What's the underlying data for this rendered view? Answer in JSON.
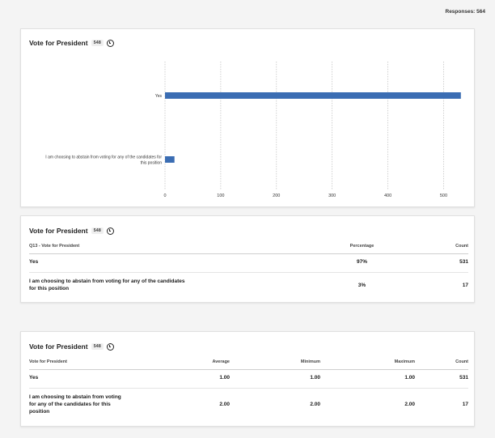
{
  "header": {
    "responses": "Responses: 564"
  },
  "chart_card": {
    "title": "Vote for President",
    "badge": "548"
  },
  "chart_data": {
    "type": "bar",
    "orientation": "horizontal",
    "categories": [
      "Yes",
      "I am choosing to abstain from voting for any of the candidates for this position"
    ],
    "category_lines": [
      [
        "Yes"
      ],
      [
        "I am choosing to abstain from voting for any of the candidates for",
        "this position"
      ]
    ],
    "values": [
      531,
      17
    ],
    "xlim": [
      0,
      540
    ],
    "xticks": [
      0,
      100,
      200,
      300,
      400,
      500
    ],
    "grid": true,
    "bar_color": "#3b6db3"
  },
  "table1": {
    "title": "Vote for President",
    "badge": "548",
    "headers": [
      "Q13 - Vote for President",
      "Percentage",
      "Count"
    ],
    "rows": [
      {
        "label": [
          "Yes"
        ],
        "percentage": "97%",
        "count": "531"
      },
      {
        "label": [
          "I am choosing to abstain from voting for any of the candidates",
          "for this position"
        ],
        "percentage": "3%",
        "count": "17"
      }
    ]
  },
  "table2": {
    "title": "Vote for President",
    "badge": "548",
    "headers": [
      "Vote for President",
      "Average",
      "Minimum",
      "Maximum",
      "Count"
    ],
    "rows": [
      {
        "label": [
          "Yes"
        ],
        "average": "1.00",
        "minimum": "1.00",
        "maximum": "1.00",
        "count": "531"
      },
      {
        "label": [
          "I am choosing to abstain from voting",
          "for any of the candidates for this",
          "position"
        ],
        "average": "2.00",
        "minimum": "2.00",
        "maximum": "2.00",
        "count": "17"
      }
    ]
  }
}
